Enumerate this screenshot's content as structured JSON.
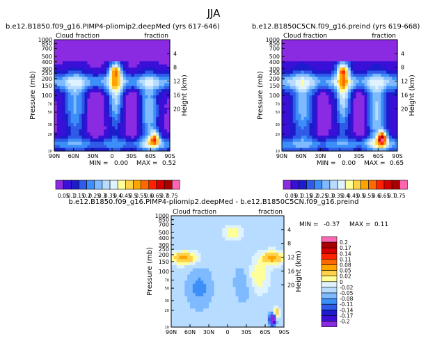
{
  "figure_title": "JJA",
  "colors": {
    "panel_fill": "#9ec8ff",
    "seq_fallback": "#8ecbff"
  },
  "chart_data": [
    {
      "type": "heatmap",
      "title": "b.e12.B1850.f09_g16.PIMP4-pliomip2.deepMed (yrs 617-646)",
      "left_label": "Cloud fraction",
      "right_label": "fraction",
      "ylabel": "Pressure (mb)",
      "y2label": "Height (km)",
      "x_ticks": [
        "90N",
        "60N",
        "30N",
        "0",
        "30S",
        "60S",
        "90S"
      ],
      "p_ticks": [
        10,
        20,
        30,
        50,
        70,
        100,
        150,
        200,
        250,
        300,
        400,
        500,
        700,
        850,
        1000
      ],
      "h_ticks": [
        4,
        8,
        12,
        16,
        20
      ],
      "min_label": "MIN =",
      "min_value": "0.00",
      "max_label": "MAX =",
      "max_value": "0.52",
      "min": 0.0,
      "max": 0.52
    },
    {
      "type": "heatmap",
      "title": "b.e12.B1850C5CN.f09_g16.preind (yrs 619-668)",
      "left_label": "Cloud fraction",
      "right_label": "fraction",
      "ylabel": "Pressure (mb)",
      "y2label": "Height (km)",
      "x_ticks": [
        "90N",
        "60N",
        "30N",
        "0",
        "30S",
        "60S",
        "90S"
      ],
      "p_ticks": [
        10,
        20,
        30,
        50,
        70,
        100,
        150,
        200,
        250,
        300,
        400,
        500,
        700,
        850,
        1000
      ],
      "h_ticks": [
        4,
        8,
        12,
        16,
        20
      ],
      "min_label": "MIN =",
      "min_value": "0.00",
      "max_label": "MAX =",
      "max_value": "0.65",
      "min": 0.0,
      "max": 0.65
    },
    {
      "type": "heatmap",
      "title": "b.e12.B1850.f09_g16.PIMP4-pliomip2.deepMed - b.e12.B1850C5CN.f09_g16.preind",
      "left_label": "Cloud fraction",
      "right_label": "fraction",
      "ylabel": "Pressure (mb)",
      "y2label": "Height (km)",
      "x_ticks": [
        "90N",
        "60N",
        "30N",
        "0",
        "30S",
        "60S",
        "90S"
      ],
      "p_ticks": [
        10,
        20,
        30,
        50,
        70,
        100,
        150,
        200,
        250,
        300,
        400,
        500,
        700,
        850,
        1000
      ],
      "h_ticks": [
        4,
        8,
        12,
        16,
        20
      ],
      "min_label": "MIN =",
      "min_value": "-0.37",
      "max_label": "MAX =",
      "max_value": "0.11",
      "min": -0.37,
      "max": 0.11
    }
  ],
  "seq_colorbar": {
    "labels": [
      "0.05",
      "0.1",
      "0.15",
      "0.2",
      "0.25",
      "0.3",
      "0.35",
      "0.4",
      "0.45",
      "0.5",
      "0.55",
      "0.6",
      "0.65",
      "0.7",
      "0.75"
    ],
    "colors": [
      "#8a2be2",
      "#3a10d8",
      "#1c1ccc",
      "#2f5be8",
      "#3c8ef8",
      "#7fbaff",
      "#b7dcff",
      "#dff2ff",
      "#ffff99",
      "#ffd24a",
      "#ffa500",
      "#ff6a00",
      "#ff2200",
      "#d40000",
      "#a80000",
      "#ff66b2"
    ]
  },
  "diff_colorbar": {
    "labels": [
      "0.2",
      "0.17",
      "0.14",
      "0.11",
      "0.08",
      "0.05",
      "0.02",
      "0",
      "-0.02",
      "-0.05",
      "-0.08",
      "-0.11",
      "-0.14",
      "-0.17",
      "-0.2"
    ],
    "colors": [
      "#ff69b4",
      "#a80000",
      "#d40000",
      "#ff2200",
      "#ff6a00",
      "#ffa500",
      "#ffd24a",
      "#ffff99",
      "#dff2ff",
      "#b7dcff",
      "#7fbaff",
      "#3c8ef8",
      "#2f5be8",
      "#1c1ccc",
      "#3a10d8",
      "#8a2be2"
    ]
  }
}
